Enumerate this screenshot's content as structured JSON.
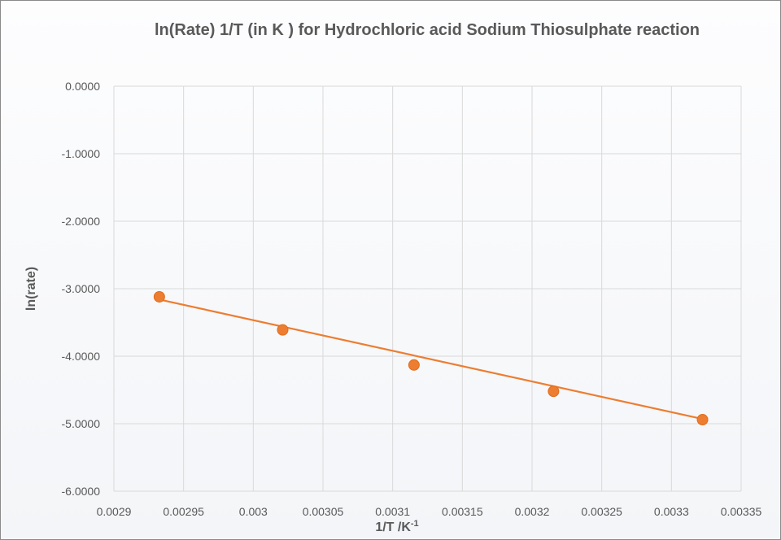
{
  "chart_data": {
    "type": "scatter",
    "title": "ln(Rate)  1/T (in K ) for Hydrochloric acid Sodium Thiosulphate reaction",
    "xlabel": "1/T   /K",
    "xlabel_superscript": "-1",
    "ylabel": "ln(rate)",
    "xlim": [
      0.0029,
      0.00335
    ],
    "ylim": [
      -6,
      0
    ],
    "x_ticks": [
      "0.0029",
      "0.00295",
      "0.003",
      "0.00305",
      "0.0031",
      "0.00315",
      "0.0032",
      "0.00325",
      "0.0033",
      "0.00335"
    ],
    "y_ticks": [
      "0.0000",
      "-1.0000",
      "-2.0000",
      "-3.0000",
      "-4.0000",
      "-5.0000",
      "-6.0000"
    ],
    "grid": true,
    "series": [
      {
        "name": "ln(rate)",
        "color": "#ED7D31",
        "x": [
          0.0029326,
          0.0030211,
          0.0031153,
          0.0032154,
          0.0033223
        ],
        "y": [
          -3.12,
          -3.61,
          -4.13,
          -4.52,
          -4.94
        ]
      }
    ],
    "trendline": {
      "type": "linear",
      "color": "#ED7D31",
      "x": [
        0.0029326,
        0.0033223
      ],
      "y": [
        -3.16,
        -4.93
      ]
    }
  }
}
